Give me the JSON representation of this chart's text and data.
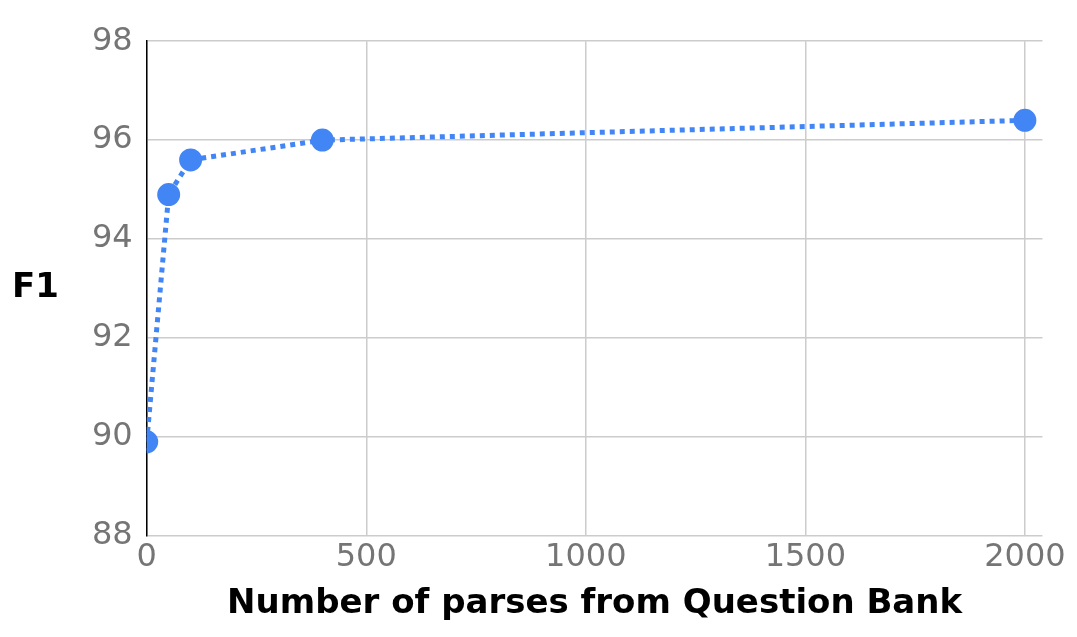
{
  "chart_data": {
    "type": "line",
    "xlabel": "Number of parses from Question Bank",
    "ylabel": "F1",
    "x": [
      0,
      50,
      100,
      400,
      2000
    ],
    "series": [
      {
        "color": "#4285f4",
        "values": [
          89.9,
          94.9,
          95.6,
          96.0,
          96.4
        ]
      }
    ],
    "xlim": [
      0,
      2040
    ],
    "xticks": [
      0,
      500,
      1000,
      1500,
      2000
    ],
    "ylim": [
      88,
      98
    ],
    "yticks": [
      88,
      90,
      92,
      94,
      96,
      98
    ],
    "grid": true,
    "legend": false,
    "marker": "circle",
    "line_style": "dotted"
  }
}
